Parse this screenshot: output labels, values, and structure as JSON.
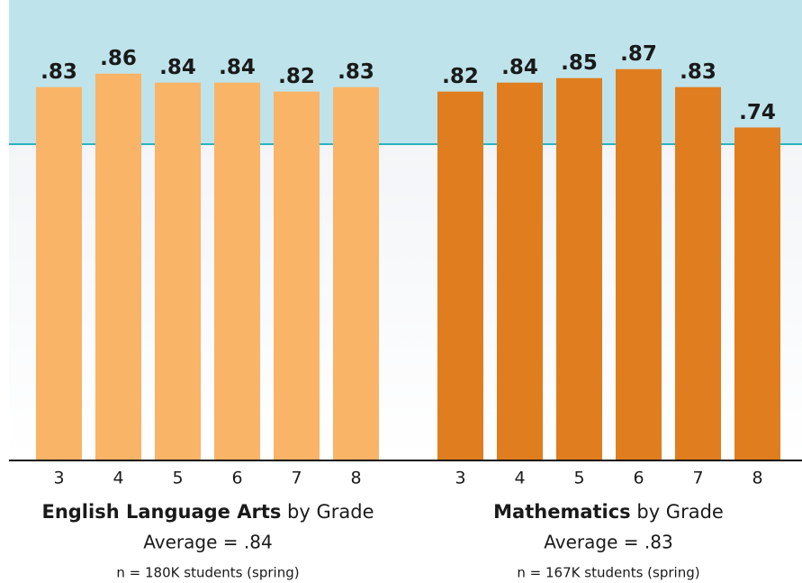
{
  "chart_data": [
    {
      "type": "bar",
      "title_bold": "English Language Arts",
      "title_rest": "by Grade",
      "subtitle": "Average = .84",
      "note": "n = 180K students (spring)",
      "categories": [
        "3",
        "4",
        "5",
        "6",
        "7",
        "8"
      ],
      "values": [
        0.83,
        0.86,
        0.84,
        0.84,
        0.82,
        0.83
      ],
      "value_labels": [
        ".83",
        ".86",
        ".84",
        ".84",
        ".82",
        ".83"
      ],
      "color": "#f9b467",
      "ylim": [
        0,
        1
      ]
    },
    {
      "type": "bar",
      "title_bold": "Mathematics",
      "title_rest": "by Grade",
      "subtitle": "Average = .83",
      "note": "n = 167K students (spring)",
      "categories": [
        "3",
        "4",
        "5",
        "6",
        "7",
        "8"
      ],
      "values": [
        0.82,
        0.84,
        0.85,
        0.87,
        0.83,
        0.74
      ],
      "value_labels": [
        ".82",
        ".84",
        ".85",
        ".87",
        ".83",
        ".74"
      ],
      "color": "#e07d1e",
      "ylim": [
        0,
        1
      ]
    }
  ]
}
